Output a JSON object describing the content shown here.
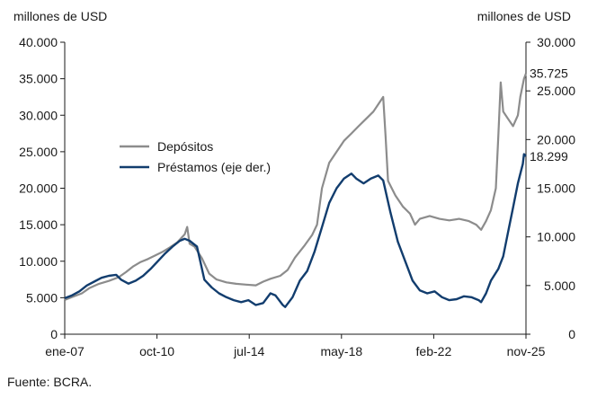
{
  "chart_data": {
    "type": "line",
    "title": "",
    "left_axis_unit": "millones de USD",
    "right_axis_unit": "millones de USD",
    "left_ylim": [
      0,
      40000
    ],
    "right_ylim": [
      0,
      30000
    ],
    "left_ticks": [
      "0",
      "5.000",
      "10.000",
      "15.000",
      "20.000",
      "25.000",
      "30.000",
      "35.000",
      "40.000"
    ],
    "right_ticks": [
      "0",
      "5.000",
      "10.000",
      "15.000",
      "20.000",
      "25.000",
      "30.000"
    ],
    "x_ticks": [
      "ene-07",
      "oct-10",
      "jul-14",
      "may-18",
      "feb-22",
      "nov-25"
    ],
    "x_range": [
      2007.0,
      2025.83
    ],
    "grid": false,
    "legend_position": "center-left",
    "series": [
      {
        "name": "Depósitos",
        "axis": "left",
        "color": "#8c8c8c",
        "end_label": "35.725",
        "points": [
          [
            2007.0,
            4700
          ],
          [
            2007.3,
            5100
          ],
          [
            2007.7,
            5600
          ],
          [
            2008.0,
            6300
          ],
          [
            2008.4,
            6900
          ],
          [
            2008.8,
            7300
          ],
          [
            2009.2,
            7800
          ],
          [
            2009.5,
            8500
          ],
          [
            2009.8,
            9300
          ],
          [
            2010.1,
            9900
          ],
          [
            2010.4,
            10300
          ],
          [
            2010.7,
            10800
          ],
          [
            2011.0,
            11300
          ],
          [
            2011.3,
            11900
          ],
          [
            2011.6,
            12600
          ],
          [
            2011.9,
            13700
          ],
          [
            2012.0,
            14700
          ],
          [
            2012.1,
            12400
          ],
          [
            2012.3,
            12000
          ],
          [
            2012.6,
            10400
          ],
          [
            2012.9,
            8300
          ],
          [
            2013.2,
            7500
          ],
          [
            2013.6,
            7100
          ],
          [
            2014.0,
            6900
          ],
          [
            2014.4,
            6800
          ],
          [
            2014.8,
            6700
          ],
          [
            2015.1,
            7200
          ],
          [
            2015.4,
            7600
          ],
          [
            2015.8,
            8000
          ],
          [
            2016.1,
            8800
          ],
          [
            2016.4,
            10500
          ],
          [
            2016.8,
            12200
          ],
          [
            2017.1,
            13600
          ],
          [
            2017.3,
            15000
          ],
          [
            2017.5,
            20000
          ],
          [
            2017.8,
            23500
          ],
          [
            2018.1,
            25000
          ],
          [
            2018.4,
            26500
          ],
          [
            2018.7,
            27500
          ],
          [
            2019.0,
            28500
          ],
          [
            2019.3,
            29500
          ],
          [
            2019.6,
            30500
          ],
          [
            2019.8,
            31500
          ],
          [
            2020.0,
            32500
          ],
          [
            2020.1,
            27000
          ],
          [
            2020.2,
            21000
          ],
          [
            2020.5,
            19000
          ],
          [
            2020.8,
            17500
          ],
          [
            2021.1,
            16500
          ],
          [
            2021.3,
            15000
          ],
          [
            2021.5,
            15800
          ],
          [
            2021.9,
            16200
          ],
          [
            2022.3,
            15800
          ],
          [
            2022.7,
            15600
          ],
          [
            2023.1,
            15800
          ],
          [
            2023.5,
            15500
          ],
          [
            2023.8,
            15000
          ],
          [
            2024.0,
            14300
          ],
          [
            2024.2,
            15500
          ],
          [
            2024.4,
            17000
          ],
          [
            2024.6,
            20000
          ],
          [
            2024.7,
            27000
          ],
          [
            2024.8,
            34500
          ],
          [
            2024.9,
            30500
          ],
          [
            2025.1,
            29500
          ],
          [
            2025.3,
            28500
          ],
          [
            2025.5,
            30000
          ],
          [
            2025.6,
            32500
          ],
          [
            2025.75,
            35000
          ],
          [
            2025.83,
            35725
          ]
        ]
      },
      {
        "name": "Préstamos (eje der.)",
        "axis": "right",
        "color": "#123d6e",
        "end_label": "18.299",
        "points": [
          [
            2007.0,
            3700
          ],
          [
            2007.3,
            4000
          ],
          [
            2007.6,
            4400
          ],
          [
            2007.9,
            5000
          ],
          [
            2008.2,
            5400
          ],
          [
            2008.5,
            5800
          ],
          [
            2008.8,
            6000
          ],
          [
            2009.1,
            6100
          ],
          [
            2009.3,
            5600
          ],
          [
            2009.6,
            5200
          ],
          [
            2009.9,
            5500
          ],
          [
            2010.2,
            6000
          ],
          [
            2010.5,
            6700
          ],
          [
            2010.8,
            7500
          ],
          [
            2011.1,
            8300
          ],
          [
            2011.4,
            9000
          ],
          [
            2011.7,
            9600
          ],
          [
            2011.9,
            9800
          ],
          [
            2012.1,
            9600
          ],
          [
            2012.4,
            9000
          ],
          [
            2012.7,
            5600
          ],
          [
            2013.0,
            4800
          ],
          [
            2013.3,
            4200
          ],
          [
            2013.6,
            3800
          ],
          [
            2013.9,
            3500
          ],
          [
            2014.2,
            3300
          ],
          [
            2014.5,
            3500
          ],
          [
            2014.8,
            3000
          ],
          [
            2015.1,
            3200
          ],
          [
            2015.4,
            4200
          ],
          [
            2015.6,
            4000
          ],
          [
            2015.9,
            3000
          ],
          [
            2016.0,
            2800
          ],
          [
            2016.3,
            3800
          ],
          [
            2016.6,
            5500
          ],
          [
            2016.9,
            6500
          ],
          [
            2017.2,
            8500
          ],
          [
            2017.5,
            11000
          ],
          [
            2017.8,
            13500
          ],
          [
            2018.1,
            15000
          ],
          [
            2018.4,
            16000
          ],
          [
            2018.7,
            16500
          ],
          [
            2018.9,
            16000
          ],
          [
            2019.2,
            15500
          ],
          [
            2019.5,
            16000
          ],
          [
            2019.8,
            16300
          ],
          [
            2020.0,
            15800
          ],
          [
            2020.3,
            12500
          ],
          [
            2020.6,
            9500
          ],
          [
            2020.9,
            7500
          ],
          [
            2021.2,
            5500
          ],
          [
            2021.5,
            4500
          ],
          [
            2021.8,
            4200
          ],
          [
            2022.1,
            4400
          ],
          [
            2022.4,
            3800
          ],
          [
            2022.7,
            3500
          ],
          [
            2023.0,
            3600
          ],
          [
            2023.3,
            3900
          ],
          [
            2023.6,
            3800
          ],
          [
            2023.9,
            3500
          ],
          [
            2024.0,
            3300
          ],
          [
            2024.2,
            4200
          ],
          [
            2024.4,
            5500
          ],
          [
            2024.7,
            6700
          ],
          [
            2024.9,
            8000
          ],
          [
            2025.1,
            10500
          ],
          [
            2025.3,
            13000
          ],
          [
            2025.5,
            15500
          ],
          [
            2025.7,
            17500
          ],
          [
            2025.75,
            18500
          ],
          [
            2025.83,
            18299
          ]
        ]
      }
    ]
  },
  "source": "Fuente: BCRA."
}
